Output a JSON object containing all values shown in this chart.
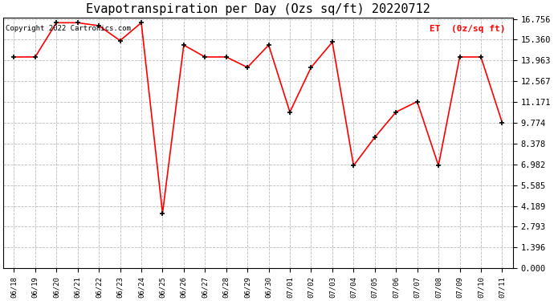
{
  "title": "Evapotranspiration per Day (Ozs sq/ft) 20220712",
  "legend_label": "ET  (0z/sq ft)",
  "copyright_text": "Copyright 2022 Cartronics.com",
  "x_labels": [
    "06/18",
    "06/19",
    "06/20",
    "06/21",
    "06/22",
    "06/23",
    "06/24",
    "06/25",
    "06/26",
    "06/27",
    "06/28",
    "06/29",
    "06/30",
    "07/01",
    "07/02",
    "07/03",
    "07/04",
    "07/05",
    "07/06",
    "07/07",
    "07/08",
    "07/09",
    "07/10",
    "07/11"
  ],
  "y_values": [
    14.2,
    14.2,
    16.5,
    16.5,
    16.3,
    15.3,
    16.5,
    3.7,
    15.0,
    14.2,
    14.2,
    13.5,
    15.0,
    10.5,
    13.5,
    15.2,
    6.9,
    8.8,
    10.5,
    11.2,
    6.9,
    14.2,
    14.2,
    9.8
  ],
  "y_ticks": [
    0.0,
    1.396,
    2.793,
    4.189,
    5.585,
    6.982,
    8.378,
    9.774,
    11.171,
    12.567,
    13.963,
    15.36,
    16.756
  ],
  "y_min": 0.0,
  "y_max": 16.756,
  "line_color": "red",
  "marker_color": "black",
  "marker_style": "+",
  "grid_color": "#bbbbbb",
  "background_color": "white",
  "title_fontsize": 11,
  "legend_color": "red",
  "copyright_color": "black",
  "copyright_fontsize": 6.5
}
